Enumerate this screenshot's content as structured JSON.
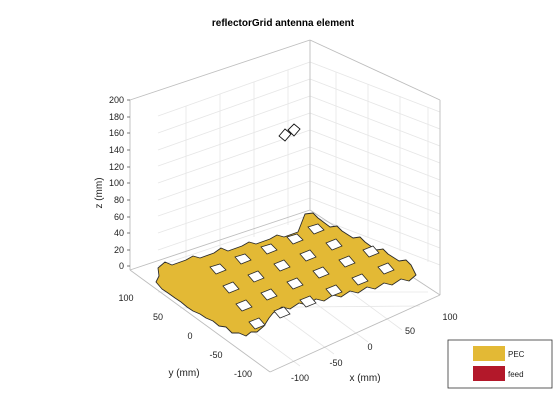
{
  "title": "reflectorGrid antenna element",
  "axes": {
    "x_label": "x (mm)",
    "y_label": "y (mm)",
    "z_label": "z (mm)",
    "x_ticks": [
      "-100",
      "-50",
      "0",
      "50",
      "100"
    ],
    "y_ticks": [
      "100",
      "50",
      "0",
      "-50",
      "-100"
    ],
    "z_ticks": [
      "200",
      "180",
      "160",
      "140",
      "120",
      "100",
      "80",
      "60",
      "40",
      "20",
      "0"
    ]
  },
  "legend": {
    "items": [
      {
        "label": "PEC",
        "color": "#e3b935"
      },
      {
        "label": "feed",
        "color": "#b3182a"
      }
    ]
  },
  "colors": {
    "pec": "#e3b935",
    "grid_line": "#e6e6e6",
    "box_line": "#bdbdbd"
  }
}
